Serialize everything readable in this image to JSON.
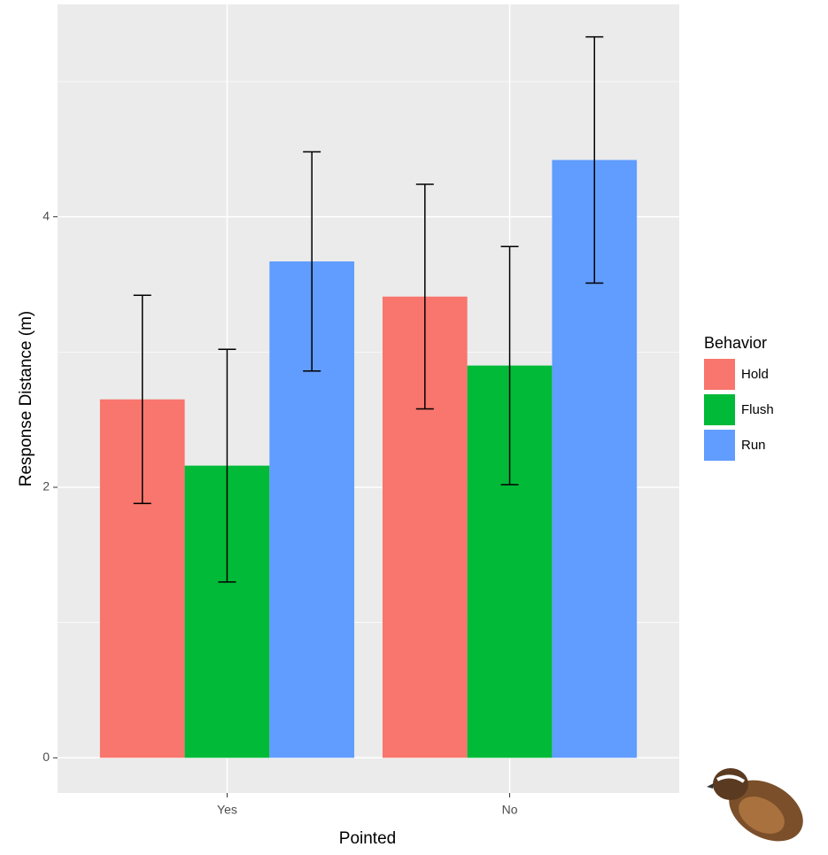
{
  "chart_data": {
    "type": "bar",
    "x_label": "Pointed",
    "y_label": "Response Distance (m)",
    "categories": [
      "Yes",
      "No"
    ],
    "legend_title": "Behavior",
    "series": [
      {
        "name": "Hold",
        "color": "#f8766d",
        "values": [
          2.65,
          3.41
        ],
        "errors": [
          0.77,
          0.83
        ]
      },
      {
        "name": "Flush",
        "color": "#00ba38",
        "values": [
          2.16,
          2.9
        ],
        "errors": [
          0.86,
          0.88
        ]
      },
      {
        "name": "Run",
        "color": "#619cff",
        "values": [
          3.67,
          4.42
        ],
        "errors": [
          0.81,
          0.91
        ]
      }
    ],
    "ylim": [
      -0.26,
      5.57
    ],
    "yticks": [
      0,
      2,
      4
    ],
    "minor_yticks": [
      1,
      3,
      5
    ],
    "grid": true,
    "legend": "right"
  }
}
